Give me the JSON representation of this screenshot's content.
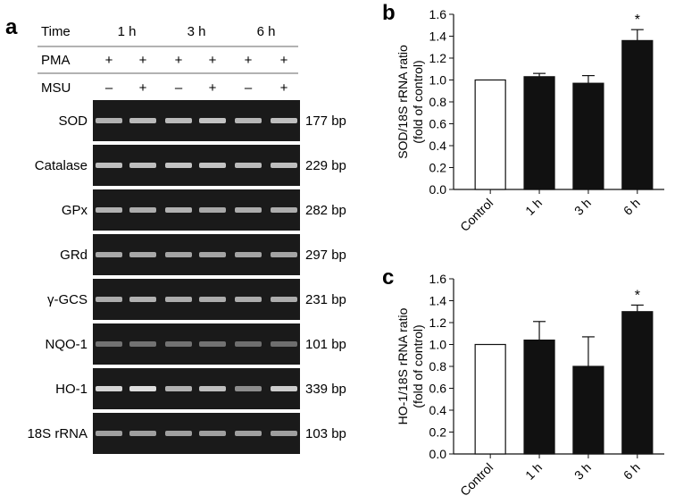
{
  "panel_a": {
    "letter": "a",
    "time_label": "Time",
    "times": [
      "1 h",
      "3 h",
      "6 h"
    ],
    "pma_label": "PMA",
    "pma_marks": [
      "+",
      "+",
      "+",
      "+",
      "+",
      "+"
    ],
    "msu_label": "MSU",
    "msu_marks": [
      "–",
      "+",
      "–",
      "+",
      "–",
      "+"
    ],
    "genes": [
      {
        "name": "SOD",
        "size": "177 bp",
        "band_intensity": [
          0.65,
          0.7,
          0.7,
          0.75,
          0.68,
          0.72
        ]
      },
      {
        "name": "Catalase",
        "size": "229 bp",
        "band_intensity": [
          0.72,
          0.72,
          0.75,
          0.75,
          0.7,
          0.72
        ]
      },
      {
        "name": "GPx",
        "size": "282 bp",
        "band_intensity": [
          0.65,
          0.62,
          0.65,
          0.6,
          0.62,
          0.62
        ]
      },
      {
        "name": "GRd",
        "size": "297 bp",
        "band_intensity": [
          0.6,
          0.6,
          0.58,
          0.58,
          0.58,
          0.58
        ]
      },
      {
        "name": "γ-GCS",
        "size": "231 bp",
        "band_intensity": [
          0.62,
          0.65,
          0.62,
          0.62,
          0.62,
          0.62
        ]
      },
      {
        "name": "NQO-1",
        "size": "101 bp",
        "band_intensity": [
          0.3,
          0.3,
          0.3,
          0.3,
          0.28,
          0.28
        ]
      },
      {
        "name": "HO-1",
        "size": "339 bp",
        "band_intensity": [
          0.85,
          0.9,
          0.65,
          0.72,
          0.45,
          0.8
        ]
      },
      {
        "name": "18S rRNA",
        "size": "103 bp",
        "band_intensity": [
          0.55,
          0.55,
          0.55,
          0.55,
          0.55,
          0.55
        ]
      }
    ]
  },
  "chart_data": [
    {
      "panel": "b",
      "type": "bar",
      "categories": [
        "Control",
        "1 h",
        "3 h",
        "6 h"
      ],
      "values": [
        1.0,
        1.03,
        0.97,
        1.36
      ],
      "errors": [
        0,
        0.03,
        0.07,
        0.1
      ],
      "significance": [
        "",
        "",
        "",
        "*"
      ],
      "bar_colors": [
        "#ffffff",
        "#111111",
        "#111111",
        "#111111"
      ],
      "ylabel": "SOD/18S rRNA ratio",
      "ylabel2": "(fold of control)",
      "ylim": [
        0,
        1.6
      ],
      "yticks": [
        "0.0",
        "0.2",
        "0.4",
        "0.6",
        "0.8",
        "1.0",
        "1.2",
        "1.4",
        "1.6"
      ],
      "grid": false
    },
    {
      "panel": "c",
      "type": "bar",
      "categories": [
        "Control",
        "1 h",
        "3 h",
        "6 h"
      ],
      "values": [
        1.0,
        1.04,
        0.8,
        1.3
      ],
      "errors": [
        0,
        0.17,
        0.27,
        0.06
      ],
      "significance": [
        "",
        "",
        "",
        "*"
      ],
      "bar_colors": [
        "#ffffff",
        "#111111",
        "#111111",
        "#111111"
      ],
      "ylabel": "HO-1/18S rRNA ratio",
      "ylabel2": "(fold of control)",
      "ylim": [
        0,
        1.6
      ],
      "yticks": [
        "0.0",
        "0.2",
        "0.4",
        "0.6",
        "0.8",
        "1.0",
        "1.2",
        "1.4",
        "1.6"
      ],
      "grid": false
    }
  ]
}
